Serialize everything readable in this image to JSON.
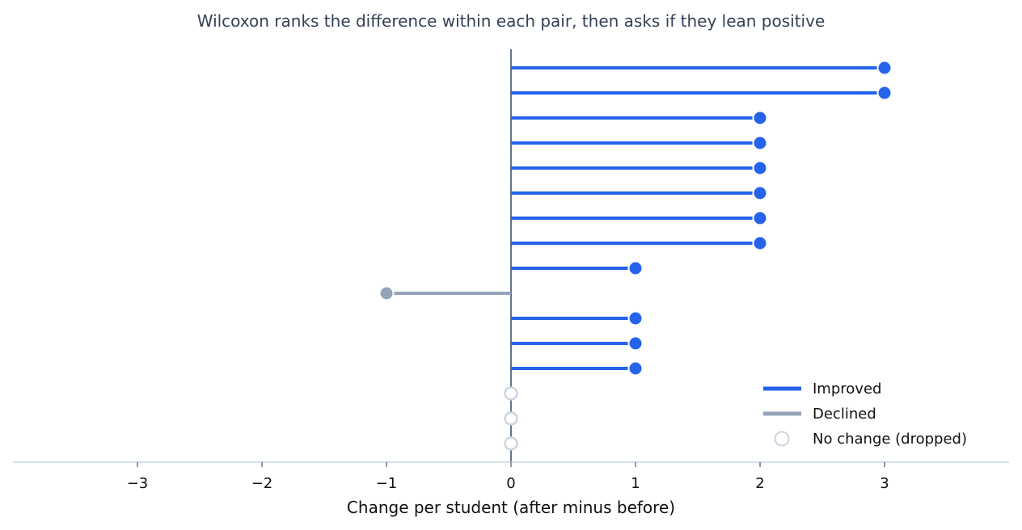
{
  "chart_data": {
    "type": "lollipop",
    "title": "Wilcoxon ranks the difference within each pair, then asks if they lean positive",
    "xlabel": "Change per student (after minus before)",
    "ylabel": "",
    "xlim": [
      -4,
      4
    ],
    "xticks": [
      -3,
      -2,
      -1,
      0,
      1,
      2,
      3
    ],
    "xtick_labels": [
      "−3",
      "−2",
      "−1",
      "0",
      "1",
      "2",
      "3"
    ],
    "values": [
      3,
      3,
      2,
      2,
      2,
      2,
      2,
      2,
      1,
      -1,
      1,
      1,
      1,
      0,
      0,
      0
    ],
    "grid": false,
    "legend_position": "bottom-right",
    "legend": [
      {
        "key": "improved",
        "label": "Improved",
        "marker": "line",
        "color": "#2563eb"
      },
      {
        "key": "declined",
        "label": "Declined",
        "marker": "line",
        "color": "#94a3b8"
      },
      {
        "key": "nochange",
        "label": "No change (dropped)",
        "marker": "hollow-circle",
        "color": "#cbd5e1"
      }
    ],
    "colors": {
      "improved": "#2563eb",
      "declined": "#94a3b8",
      "nochange": "#cbd5e1",
      "zero_line": "#64748b",
      "axis": "#cbd5e1"
    }
  }
}
